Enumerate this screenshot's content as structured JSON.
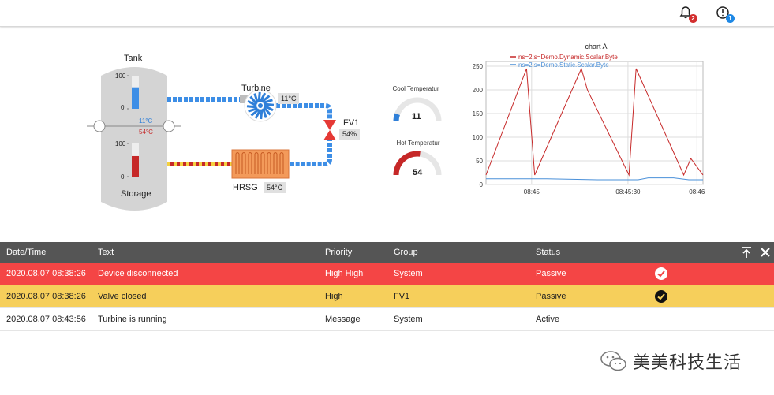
{
  "topbar": {
    "notifications_badge": "2",
    "alerts_badge": "1"
  },
  "process": {
    "tank_label": "Tank",
    "storage_label": "Storage",
    "turbine_label": "Turbine",
    "hrsg_label": "HRSG",
    "fv1_label": "FV1",
    "tank_scale_top": "100",
    "tank_scale_bottom": "0",
    "storage_scale_top": "100",
    "storage_scale_bottom": "0",
    "tank_temp_cool": "11°C",
    "tank_temp_hot": "54°C",
    "turbine_temp": "11°C",
    "hrsg_temp": "54°C",
    "fv1_value": "54%",
    "tank_level_fraction": 0.65,
    "storage_level_fraction": 0.62,
    "colors": {
      "cool": "#3d8ee6",
      "hot": "#c62828",
      "hrsg": "#f39a5a"
    }
  },
  "gauges": {
    "cool": {
      "title": "Cool Temperatur",
      "value": "11",
      "fraction": 0.11,
      "color": "#2f7fd8"
    },
    "hot": {
      "title": "Hot Temperatur",
      "value": "54",
      "fraction": 0.54,
      "color": "#c62828"
    }
  },
  "chart_data": {
    "type": "line",
    "title": "chart A",
    "x_ticks": [
      "08:45",
      "08:45:30",
      "08:46"
    ],
    "y_ticks": [
      "0",
      "50",
      "100",
      "150",
      "200",
      "250"
    ],
    "ylim": [
      0,
      260
    ],
    "grid": true,
    "legend_position": "top-left",
    "series": [
      {
        "name": "ns=2;s=Demo.Dynamic.Scalar.Byte",
        "color": "#c62828",
        "x": [
          0,
          40,
          48,
          94,
          100,
          141,
          148,
          195,
          202,
          214
        ],
        "y": [
          20,
          245,
          20,
          245,
          200,
          20,
          245,
          20,
          55,
          20
        ]
      },
      {
        "name": "ns=2;s=Demo.Static.Scalar.Byte",
        "color": "#4a90d9",
        "x": [
          0,
          60,
          110,
          150,
          160,
          185,
          200,
          214
        ],
        "y": [
          12,
          12,
          10,
          10,
          14,
          14,
          10,
          10
        ]
      }
    ]
  },
  "alarm_table": {
    "columns": [
      "Date/Time",
      "Text",
      "Priority",
      "Group",
      "Status"
    ],
    "rows": [
      {
        "datetime": "2020.08.07 08:38:26",
        "text": "Device disconnected",
        "priority": "High High",
        "group": "System",
        "status": "Passive",
        "color": "#f44545"
      },
      {
        "datetime": "2020.08.07 08:38:26",
        "text": "Valve closed",
        "priority": "High",
        "group": "FV1",
        "status": "Passive",
        "color": "#f6cf5b"
      },
      {
        "datetime": "2020.08.07 08:43:56",
        "text": "Turbine is running",
        "priority": "Message",
        "group": "System",
        "status": "Active",
        "color": "#ffffff"
      }
    ]
  },
  "watermark": {
    "text": "美美科技生活"
  }
}
